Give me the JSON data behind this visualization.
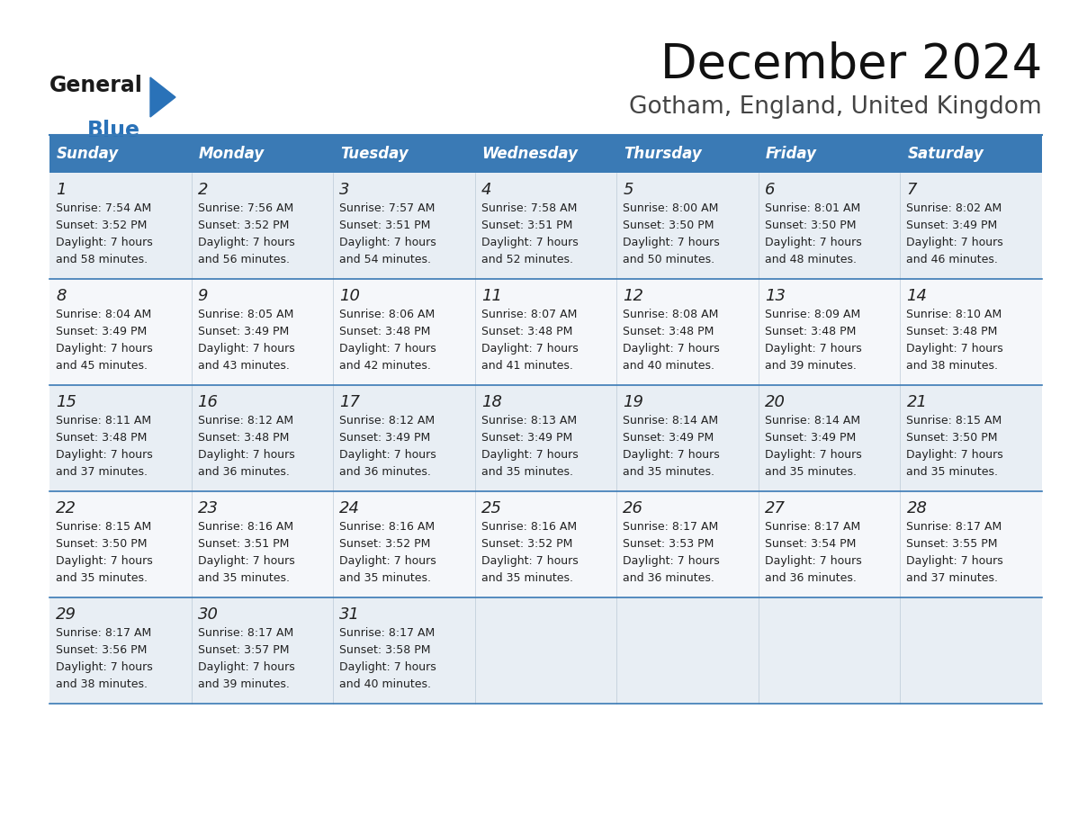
{
  "title": "December 2024",
  "subtitle": "Gotham, England, United Kingdom",
  "header_color": "#3a7ab5",
  "header_text_color": "#ffffff",
  "day_names": [
    "Sunday",
    "Monday",
    "Tuesday",
    "Wednesday",
    "Thursday",
    "Friday",
    "Saturday"
  ],
  "weeks": [
    [
      {
        "day": 1,
        "sunrise": "7:54 AM",
        "sunset": "3:52 PM",
        "daylight": "7 hours and 58 minutes"
      },
      {
        "day": 2,
        "sunrise": "7:56 AM",
        "sunset": "3:52 PM",
        "daylight": "7 hours and 56 minutes"
      },
      {
        "day": 3,
        "sunrise": "7:57 AM",
        "sunset": "3:51 PM",
        "daylight": "7 hours and 54 minutes"
      },
      {
        "day": 4,
        "sunrise": "7:58 AM",
        "sunset": "3:51 PM",
        "daylight": "7 hours and 52 minutes"
      },
      {
        "day": 5,
        "sunrise": "8:00 AM",
        "sunset": "3:50 PM",
        "daylight": "7 hours and 50 minutes"
      },
      {
        "day": 6,
        "sunrise": "8:01 AM",
        "sunset": "3:50 PM",
        "daylight": "7 hours and 48 minutes"
      },
      {
        "day": 7,
        "sunrise": "8:02 AM",
        "sunset": "3:49 PM",
        "daylight": "7 hours and 46 minutes"
      }
    ],
    [
      {
        "day": 8,
        "sunrise": "8:04 AM",
        "sunset": "3:49 PM",
        "daylight": "7 hours and 45 minutes"
      },
      {
        "day": 9,
        "sunrise": "8:05 AM",
        "sunset": "3:49 PM",
        "daylight": "7 hours and 43 minutes"
      },
      {
        "day": 10,
        "sunrise": "8:06 AM",
        "sunset": "3:48 PM",
        "daylight": "7 hours and 42 minutes"
      },
      {
        "day": 11,
        "sunrise": "8:07 AM",
        "sunset": "3:48 PM",
        "daylight": "7 hours and 41 minutes"
      },
      {
        "day": 12,
        "sunrise": "8:08 AM",
        "sunset": "3:48 PM",
        "daylight": "7 hours and 40 minutes"
      },
      {
        "day": 13,
        "sunrise": "8:09 AM",
        "sunset": "3:48 PM",
        "daylight": "7 hours and 39 minutes"
      },
      {
        "day": 14,
        "sunrise": "8:10 AM",
        "sunset": "3:48 PM",
        "daylight": "7 hours and 38 minutes"
      }
    ],
    [
      {
        "day": 15,
        "sunrise": "8:11 AM",
        "sunset": "3:48 PM",
        "daylight": "7 hours and 37 minutes"
      },
      {
        "day": 16,
        "sunrise": "8:12 AM",
        "sunset": "3:48 PM",
        "daylight": "7 hours and 36 minutes"
      },
      {
        "day": 17,
        "sunrise": "8:12 AM",
        "sunset": "3:49 PM",
        "daylight": "7 hours and 36 minutes"
      },
      {
        "day": 18,
        "sunrise": "8:13 AM",
        "sunset": "3:49 PM",
        "daylight": "7 hours and 35 minutes"
      },
      {
        "day": 19,
        "sunrise": "8:14 AM",
        "sunset": "3:49 PM",
        "daylight": "7 hours and 35 minutes"
      },
      {
        "day": 20,
        "sunrise": "8:14 AM",
        "sunset": "3:49 PM",
        "daylight": "7 hours and 35 minutes"
      },
      {
        "day": 21,
        "sunrise": "8:15 AM",
        "sunset": "3:50 PM",
        "daylight": "7 hours and 35 minutes"
      }
    ],
    [
      {
        "day": 22,
        "sunrise": "8:15 AM",
        "sunset": "3:50 PM",
        "daylight": "7 hours and 35 minutes"
      },
      {
        "day": 23,
        "sunrise": "8:16 AM",
        "sunset": "3:51 PM",
        "daylight": "7 hours and 35 minutes"
      },
      {
        "day": 24,
        "sunrise": "8:16 AM",
        "sunset": "3:52 PM",
        "daylight": "7 hours and 35 minutes"
      },
      {
        "day": 25,
        "sunrise": "8:16 AM",
        "sunset": "3:52 PM",
        "daylight": "7 hours and 35 minutes"
      },
      {
        "day": 26,
        "sunrise": "8:17 AM",
        "sunset": "3:53 PM",
        "daylight": "7 hours and 36 minutes"
      },
      {
        "day": 27,
        "sunrise": "8:17 AM",
        "sunset": "3:54 PM",
        "daylight": "7 hours and 36 minutes"
      },
      {
        "day": 28,
        "sunrise": "8:17 AM",
        "sunset": "3:55 PM",
        "daylight": "7 hours and 37 minutes"
      }
    ],
    [
      {
        "day": 29,
        "sunrise": "8:17 AM",
        "sunset": "3:56 PM",
        "daylight": "7 hours and 38 minutes"
      },
      {
        "day": 30,
        "sunrise": "8:17 AM",
        "sunset": "3:57 PM",
        "daylight": "7 hours and 39 minutes"
      },
      {
        "day": 31,
        "sunrise": "8:17 AM",
        "sunset": "3:58 PM",
        "daylight": "7 hours and 40 minutes"
      },
      null,
      null,
      null,
      null
    ]
  ],
  "logo_color_general": "#1a1a1a",
  "logo_color_blue": "#2a72b8",
  "title_fontsize": 38,
  "subtitle_fontsize": 19,
  "header_fontsize": 12,
  "day_num_fontsize": 13,
  "cell_text_fontsize": 9,
  "divider_color": "#3a7ab5",
  "odd_row_bg": "#e8eef4",
  "even_row_bg": "#f5f7fa",
  "last_row_bg": "#eef2f6"
}
